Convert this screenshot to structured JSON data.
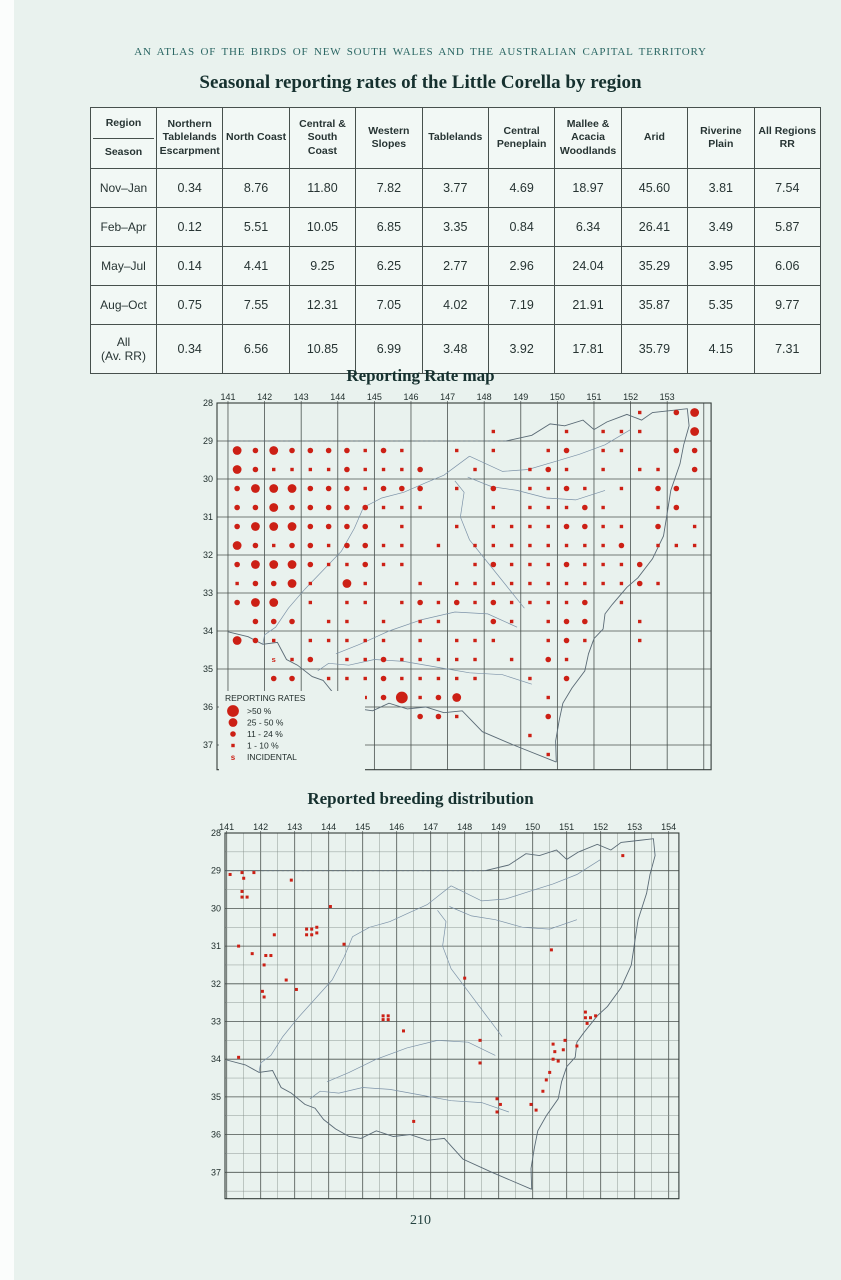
{
  "page": {
    "running_head": "AN ATLAS OF THE BIRDS OF NEW SOUTH WALES AND THE AUSTRALIAN CAPITAL TERRITORY",
    "page_number": "210"
  },
  "table": {
    "title": "Seasonal reporting rates of the Little Corella by region",
    "corner_top": "Region",
    "corner_bottom": "Season",
    "columns": [
      "Northern Tablelands Escarpment",
      "North Coast",
      "Central & South Coast",
      "Western Slopes",
      "Tablelands",
      "Central Peneplain",
      "Mallee & Acacia Woodlands",
      "Arid",
      "Riverine Plain",
      "All Regions RR"
    ],
    "rows": [
      {
        "season": "Nov–Jan",
        "values": [
          "0.34",
          "8.76",
          "11.80",
          "7.82",
          "3.77",
          "4.69",
          "18.97",
          "45.60",
          "3.81",
          "7.54"
        ]
      },
      {
        "season": "Feb–Apr",
        "values": [
          "0.12",
          "5.51",
          "10.05",
          "6.85",
          "3.35",
          "0.84",
          "6.34",
          "26.41",
          "3.49",
          "5.87"
        ]
      },
      {
        "season": "May–Jul",
        "values": [
          "0.14",
          "4.41",
          "9.25",
          "6.25",
          "2.77",
          "2.96",
          "24.04",
          "35.29",
          "3.95",
          "6.06"
        ]
      },
      {
        "season": "Aug–Oct",
        "values": [
          "0.75",
          "7.55",
          "12.31",
          "7.05",
          "4.02",
          "7.19",
          "21.91",
          "35.87",
          "5.35",
          "9.77"
        ]
      },
      {
        "season": "All (Av. RR)",
        "values": [
          "0.34",
          "6.56",
          "10.85",
          "6.99",
          "3.48",
          "3.92",
          "17.81",
          "35.79",
          "4.15",
          "7.31"
        ]
      }
    ]
  },
  "chart_data": [
    {
      "type": "scatter",
      "title": "Reporting Rate map",
      "x_ticks": [
        141,
        142,
        143,
        144,
        145,
        146,
        147,
        148,
        149,
        150,
        151,
        152,
        153
      ],
      "y_ticks": [
        28,
        29,
        30,
        31,
        32,
        33,
        34,
        35,
        36,
        37
      ],
      "xlim": [
        140.7,
        154.2
      ],
      "ylim": [
        28,
        37.65
      ],
      "grid_step": 1,
      "legend": {
        "title": "REPORTING RATES",
        "entries": [
          {
            "symbol": "circle-xl",
            "label": ">50 %"
          },
          {
            "symbol": "circle-lg",
            "label": "25 - 50 %"
          },
          {
            "symbol": "circle-md",
            "label": "11 - 24 %"
          },
          {
            "symbol": "square-sm",
            "label": "1 - 10 %"
          },
          {
            "symbol": "letter-s",
            "label": "INCIDENTAL"
          }
        ]
      },
      "dot_grid": {
        "lon_start": 141.25,
        "lat_start": 28.25,
        "step": 0.5,
        "key": {
          "1": "1 - 10 %",
          "2": "11 - 24 %",
          "3": "25 - 50 %",
          "4": ">50 %",
          "i": "incidental"
        },
        "rows": [
          "......................1.23",
          "..............1...1.111..3",
          "3232222121..1.1..12.11..22",
          "32111121112..1..121.1.11.2",
          "23332221222.1.2.1121.1.22.",
          "22322222111...1.11121..12.",
          "23332222.1..1.11112211.2.1",
          "3212212211.1.111111112.111",
          "2333211211...1211121112...",
          "12231.31..1.111111111121..",
          "233.1.11.12121211112.1....",
          ".222.11.1.11..21.122..1...",
          "321.11111.1.111..121..1...",
          "..i12.11211111.1.21.......",
          "..22.111211111..1.2.......",
          "....111124123....1........",
          ".....4....221....2........",
          "................1.........",
          ".................1........"
        ]
      }
    },
    {
      "type": "scatter",
      "title": "Reported breeding distribution",
      "x_ticks": [
        141,
        142,
        143,
        144,
        145,
        146,
        147,
        148,
        149,
        150,
        151,
        152,
        153,
        154
      ],
      "y_ticks": [
        28,
        29,
        30,
        31,
        32,
        33,
        34,
        35,
        36,
        37
      ],
      "xlim": [
        140.95,
        154.3
      ],
      "ylim": [
        28,
        37.7
      ],
      "grid_step": 0.5,
      "points": [
        [
          141.1,
          29.1
        ],
        [
          141.45,
          29.05
        ],
        [
          141.5,
          29.2
        ],
        [
          141.8,
          29.05
        ],
        [
          141.45,
          29.55
        ],
        [
          141.45,
          29.7
        ],
        [
          141.6,
          29.7
        ],
        [
          142.9,
          29.25
        ],
        [
          144.05,
          29.95
        ],
        [
          143.35,
          30.55
        ],
        [
          143.5,
          30.55
        ],
        [
          143.65,
          30.5
        ],
        [
          143.35,
          30.7
        ],
        [
          143.5,
          30.7
        ],
        [
          143.65,
          30.65
        ],
        [
          142.4,
          30.7
        ],
        [
          141.35,
          31.0
        ],
        [
          144.45,
          30.95
        ],
        [
          141.75,
          31.2
        ],
        [
          142.15,
          31.25
        ],
        [
          142.3,
          31.25
        ],
        [
          142.1,
          31.5
        ],
        [
          142.75,
          31.9
        ],
        [
          142.05,
          32.2
        ],
        [
          142.1,
          32.35
        ],
        [
          143.05,
          32.15
        ],
        [
          148.0,
          31.85
        ],
        [
          150.55,
          31.1
        ],
        [
          152.65,
          28.6
        ],
        [
          151.55,
          32.75
        ],
        [
          151.55,
          32.9
        ],
        [
          151.7,
          32.9
        ],
        [
          151.85,
          32.85
        ],
        [
          151.6,
          33.05
        ],
        [
          145.6,
          32.85
        ],
        [
          145.75,
          32.85
        ],
        [
          145.6,
          32.95
        ],
        [
          145.75,
          32.95
        ],
        [
          146.2,
          33.25
        ],
        [
          148.45,
          33.5
        ],
        [
          148.45,
          34.1
        ],
        [
          151.3,
          33.65
        ],
        [
          150.95,
          33.5
        ],
        [
          150.6,
          33.6
        ],
        [
          150.9,
          33.75
        ],
        [
          150.65,
          33.8
        ],
        [
          150.6,
          34.0
        ],
        [
          150.75,
          34.05
        ],
        [
          150.5,
          34.35
        ],
        [
          150.4,
          34.55
        ],
        [
          150.3,
          34.85
        ],
        [
          149.95,
          35.2
        ],
        [
          150.1,
          35.35
        ],
        [
          148.95,
          35.05
        ],
        [
          149.05,
          35.2
        ],
        [
          148.95,
          35.4
        ],
        [
          141.35,
          33.95
        ],
        [
          146.5,
          35.65
        ]
      ]
    }
  ],
  "colors": {
    "dot_red": "#cc2015",
    "grid": "#4a524f",
    "grid_minor": "#848f8b",
    "frame": "#343c3a",
    "coast": "#5b6b76",
    "river": "#7d93a8",
    "label": "#22302e",
    "paper": "#e9f2ee"
  }
}
